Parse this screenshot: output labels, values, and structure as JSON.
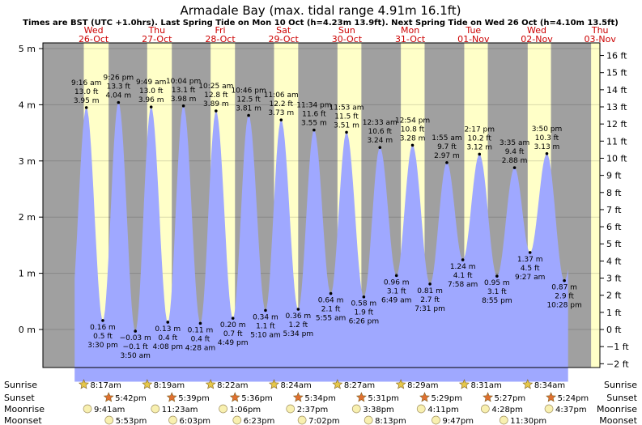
{
  "chart_data": {
    "type": "area",
    "title": "Armadale Bay (max. tidal range 4.91m 16.1ft)",
    "subtitle": "Times are BST (UTC +1.0hrs). Last Spring Tide on Mon 10 Oct (h=4.23m 13.9ft). Next Spring Tide on Wed 26 Oct (h=4.10m 13.5ft)",
    "days": [
      {
        "dow": "Wed",
        "date": "26-Oct"
      },
      {
        "dow": "Thu",
        "date": "27-Oct"
      },
      {
        "dow": "Fri",
        "date": "28-Oct"
      },
      {
        "dow": "Sat",
        "date": "29-Oct"
      },
      {
        "dow": "Sun",
        "date": "30-Oct"
      },
      {
        "dow": "Mon",
        "date": "31-Oct"
      },
      {
        "dow": "Tue",
        "date": "01-Nov"
      },
      {
        "dow": "Wed",
        "date": "02-Nov"
      },
      {
        "dow": "Thu",
        "date": "03-Nov"
      }
    ],
    "y_left_ticks": [
      "0 m",
      "1 m",
      "2 m",
      "3 m",
      "4 m",
      "5 m"
    ],
    "y_right_ticks": [
      "−2 ft",
      "−1 ft",
      "0 ft",
      "1 ft",
      "2 ft",
      "3 ft",
      "4 ft",
      "5 ft",
      "6 ft",
      "7 ft",
      "8 ft",
      "9 ft",
      "10 ft",
      "11 ft",
      "12 ft",
      "13 ft",
      "14 ft",
      "15 ft",
      "16 ft"
    ],
    "ylim_m": [
      -0.95,
      5.0
    ],
    "tides": [
      {
        "type": "high",
        "day": 0,
        "hour": 9.267,
        "time": "9:16 am",
        "m": 3.95,
        "ft": "13.0 ft",
        "mlabel": "3.95 m"
      },
      {
        "type": "low",
        "day": 0,
        "hour": 15.5,
        "time": "3:30 pm",
        "m": 0.16,
        "ft": "0.5 ft",
        "mlabel": "0.16 m"
      },
      {
        "type": "high",
        "day": 0,
        "hour": 21.433,
        "time": "9:26 pm",
        "m": 4.04,
        "ft": "13.3 ft",
        "mlabel": "4.04 m"
      },
      {
        "type": "low",
        "day": 1,
        "hour": 3.833,
        "time": "3:50 am",
        "m": -0.03,
        "ft": "−0.1 ft",
        "mlabel": "−0.03 m"
      },
      {
        "type": "high",
        "day": 1,
        "hour": 9.817,
        "time": "9:49 am",
        "m": 3.96,
        "ft": "13.0 ft",
        "mlabel": "3.96 m"
      },
      {
        "type": "low",
        "day": 1,
        "hour": 16.133,
        "time": "4:08 pm",
        "m": 0.13,
        "ft": "0.4 ft",
        "mlabel": "0.13 m"
      },
      {
        "type": "high",
        "day": 1,
        "hour": 22.067,
        "time": "10:04 pm",
        "m": 3.98,
        "ft": "13.1 ft",
        "mlabel": "3.98 m"
      },
      {
        "type": "low",
        "day": 2,
        "hour": 4.467,
        "time": "4:28 am",
        "m": 0.11,
        "ft": "0.4 ft",
        "mlabel": "0.11 m"
      },
      {
        "type": "high",
        "day": 2,
        "hour": 10.417,
        "time": "10:25 am",
        "m": 3.89,
        "ft": "12.8 ft",
        "mlabel": "3.89 m"
      },
      {
        "type": "low",
        "day": 2,
        "hour": 16.817,
        "time": "4:49 pm",
        "m": 0.2,
        "ft": "0.7 ft",
        "mlabel": "0.20 m"
      },
      {
        "type": "high",
        "day": 2,
        "hour": 22.767,
        "time": "10:46 pm",
        "m": 3.81,
        "ft": "12.5 ft",
        "mlabel": "3.81 m"
      },
      {
        "type": "low",
        "day": 3,
        "hour": 5.167,
        "time": "5:10 am",
        "m": 0.34,
        "ft": "1.1 ft",
        "mlabel": "0.34 m"
      },
      {
        "type": "high",
        "day": 3,
        "hour": 11.1,
        "time": "11:06 am",
        "m": 3.73,
        "ft": "12.2 ft",
        "mlabel": "3.73 m"
      },
      {
        "type": "low",
        "day": 3,
        "hour": 17.567,
        "time": "5:34 pm",
        "m": 0.36,
        "ft": "1.2 ft",
        "mlabel": "0.36 m"
      },
      {
        "type": "high",
        "day": 3,
        "hour": 23.567,
        "time": "11:34 pm",
        "m": 3.55,
        "ft": "11.6 ft",
        "mlabel": "3.55 m"
      },
      {
        "type": "low",
        "day": 4,
        "hour": 5.917,
        "time": "5:55 am",
        "m": 0.64,
        "ft": "2.1 ft",
        "mlabel": "0.64 m"
      },
      {
        "type": "high",
        "day": 4,
        "hour": 11.883,
        "time": "11:53 am",
        "m": 3.51,
        "ft": "11.5 ft",
        "mlabel": "3.51 m"
      },
      {
        "type": "low",
        "day": 4,
        "hour": 18.433,
        "time": "6:26 pm",
        "m": 0.58,
        "ft": "1.9 ft",
        "mlabel": "0.58 m"
      },
      {
        "type": "high",
        "day": 5,
        "hour": 0.55,
        "time": "12:33 am",
        "m": 3.24,
        "ft": "10.6 ft",
        "mlabel": "3.24 m"
      },
      {
        "type": "low",
        "day": 5,
        "hour": 6.817,
        "time": "6:49 am",
        "m": 0.96,
        "ft": "3.1 ft",
        "mlabel": "0.96 m"
      },
      {
        "type": "high",
        "day": 5,
        "hour": 12.9,
        "time": "12:54 pm",
        "m": 3.28,
        "ft": "10.8 ft",
        "mlabel": "3.28 m"
      },
      {
        "type": "low",
        "day": 5,
        "hour": 19.517,
        "time": "7:31 pm",
        "m": 0.81,
        "ft": "2.7 ft",
        "mlabel": "0.81 m"
      },
      {
        "type": "high",
        "day": 6,
        "hour": 1.917,
        "time": "1:55 am",
        "m": 2.97,
        "ft": "9.7 ft",
        "mlabel": "2.97 m"
      },
      {
        "type": "low",
        "day": 6,
        "hour": 7.967,
        "time": "7:58 am",
        "m": 1.24,
        "ft": "4.1 ft",
        "mlabel": "1.24 m"
      },
      {
        "type": "high",
        "day": 6,
        "hour": 14.283,
        "time": "2:17 pm",
        "m": 3.12,
        "ft": "10.2 ft",
        "mlabel": "3.12 m"
      },
      {
        "type": "low",
        "day": 6,
        "hour": 20.917,
        "time": "8:55 pm",
        "m": 0.95,
        "ft": "3.1 ft",
        "mlabel": "0.95 m"
      },
      {
        "type": "high",
        "day": 7,
        "hour": 3.583,
        "time": "3:35 am",
        "m": 2.88,
        "ft": "9.4 ft",
        "mlabel": "2.88 m"
      },
      {
        "type": "low",
        "day": 7,
        "hour": 9.45,
        "time": "9:27 am",
        "m": 1.37,
        "ft": "4.5 ft",
        "mlabel": "1.37 m"
      },
      {
        "type": "high",
        "day": 7,
        "hour": 15.833,
        "time": "3:50 pm",
        "m": 3.13,
        "ft": "10.3 ft",
        "mlabel": "3.13 m"
      },
      {
        "type": "low",
        "day": 7,
        "hour": 22.467,
        "time": "10:28 pm",
        "m": 0.87,
        "ft": "2.9 ft",
        "mlabel": "0.87 m"
      }
    ],
    "astro_labels": [
      "Sunrise",
      "Sunset",
      "Moonrise",
      "Moonset"
    ],
    "sunrise": [
      {
        "day": 0,
        "hour": 8.283,
        "time": "8:17am"
      },
      {
        "day": 1,
        "hour": 8.317,
        "time": "8:19am"
      },
      {
        "day": 2,
        "hour": 8.367,
        "time": "8:22am"
      },
      {
        "day": 3,
        "hour": 8.4,
        "time": "8:24am"
      },
      {
        "day": 4,
        "hour": 8.45,
        "time": "8:27am"
      },
      {
        "day": 5,
        "hour": 8.483,
        "time": "8:29am"
      },
      {
        "day": 6,
        "hour": 8.517,
        "time": "8:31am"
      },
      {
        "day": 7,
        "hour": 8.567,
        "time": "8:34am"
      }
    ],
    "sunset": [
      {
        "day": 0,
        "hour": 17.7,
        "time": "5:42pm"
      },
      {
        "day": 1,
        "hour": 17.65,
        "time": "5:39pm"
      },
      {
        "day": 2,
        "hour": 17.6,
        "time": "5:36pm"
      },
      {
        "day": 3,
        "hour": 17.567,
        "time": "5:34pm"
      },
      {
        "day": 4,
        "hour": 17.517,
        "time": "5:31pm"
      },
      {
        "day": 5,
        "hour": 17.483,
        "time": "5:29pm"
      },
      {
        "day": 6,
        "hour": 17.45,
        "time": "5:27pm"
      },
      {
        "day": 7,
        "hour": 17.4,
        "time": "5:24pm"
      }
    ],
    "moonrise": [
      {
        "day": 0,
        "hour": 9.683,
        "time": "9:41am"
      },
      {
        "day": 1,
        "hour": 11.383,
        "time": "11:23am"
      },
      {
        "day": 2,
        "hour": 13.1,
        "time": "1:06pm"
      },
      {
        "day": 3,
        "hour": 14.617,
        "time": "2:37pm"
      },
      {
        "day": 4,
        "hour": 15.633,
        "time": "3:38pm"
      },
      {
        "day": 5,
        "hour": 16.183,
        "time": "4:11pm"
      },
      {
        "day": 6,
        "hour": 16.467,
        "time": "4:28pm"
      },
      {
        "day": 7,
        "hour": 16.617,
        "time": "4:37pm"
      }
    ],
    "moonset": [
      {
        "day": 0,
        "hour": 17.883,
        "time": "5:53pm"
      },
      {
        "day": 1,
        "hour": 18.05,
        "time": "6:03pm"
      },
      {
        "day": 2,
        "hour": 18.383,
        "time": "6:23pm"
      },
      {
        "day": 3,
        "hour": 19.033,
        "time": "7:02pm"
      },
      {
        "day": 4,
        "hour": 20.217,
        "time": "8:13pm"
      },
      {
        "day": 5,
        "hour": 21.783,
        "time": "9:47pm"
      },
      {
        "day": 6,
        "hour": 23.5,
        "time": "11:30pm"
      }
    ],
    "colors": {
      "water": "#9fa8ff",
      "day": "#ffffc8",
      "night": "#a0a0a0",
      "date": "#cc0000",
      "sun": "#e6c84a",
      "sunset": "#e07030",
      "moon": "#f8f0b0"
    }
  }
}
